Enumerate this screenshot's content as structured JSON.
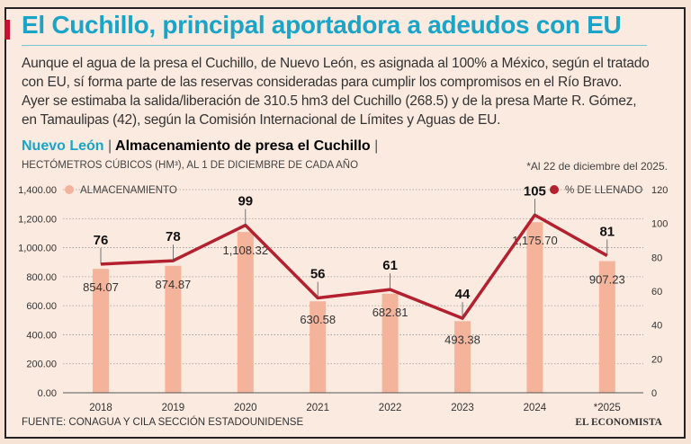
{
  "title": "El Cuchillo, principal aportadora a adeudos con EU",
  "lede": "Aunque el agua de la presa el Cuchillo, de Nuevo León, es asignada al 100% a México, según el tratado con EU, sí forma parte de las reservas consideradas para cumplir los compromisos en el Río Bravo. Ayer se estimaba la salida/liberación de 310.5 hm3 del Cuchillo (268.5) y de la presa Marte R. Gómez, en Tamaulipas (42), según la Comisión Internacional de Límites y Aguas de EU.",
  "chart_header": {
    "region": "Nuevo León",
    "separator": "|",
    "title": "Almacenamiento de presa el Cuchillo",
    "end": "|"
  },
  "units": "HECTÓMETROS CÚBICOS (HM³), AL 1 DE DICIEMBRE DE CADA AÑO",
  "note": "*Al 22 de diciembre del 2025.",
  "source": "FUENTE: CONAGUA Y CILA SECCIÓN ESTADOUNIDENSE",
  "logo": "EL ECONOMISTA",
  "colors": {
    "bar": "#f4b49b",
    "line": "#b3202f",
    "title": "#1aa5c8"
  },
  "chart_data": {
    "type": "bar+line",
    "categories": [
      "2018",
      "2019",
      "2020",
      "2021",
      "2022",
      "2023",
      "2024",
      "*2025"
    ],
    "series": [
      {
        "name": "ALMACENAMIENTO",
        "type": "bar",
        "axis": "left",
        "values": [
          854.07,
          874.87,
          1108.32,
          630.58,
          682.81,
          493.38,
          1175.7,
          907.23
        ],
        "labels": [
          "854.07",
          "874.87",
          "1,108.32",
          "630.58",
          "682.81",
          "493.38",
          "1,175.70",
          "907.23"
        ]
      },
      {
        "name": "% DE LLENADO",
        "type": "line",
        "axis": "right",
        "values": [
          76,
          78,
          99,
          56,
          61,
          44,
          105,
          81
        ]
      }
    ],
    "left_axis": {
      "range": [
        0,
        1400
      ],
      "ticks": [
        "0.00",
        "200.00",
        "400.00",
        "600.00",
        "800.00",
        "1,000.00",
        "1,200.00",
        "1,400.00"
      ]
    },
    "right_axis": {
      "range": [
        0,
        120
      ],
      "ticks": [
        "0",
        "20",
        "40",
        "60",
        "80",
        "100",
        "120"
      ]
    },
    "grid": true,
    "legend": "top"
  }
}
